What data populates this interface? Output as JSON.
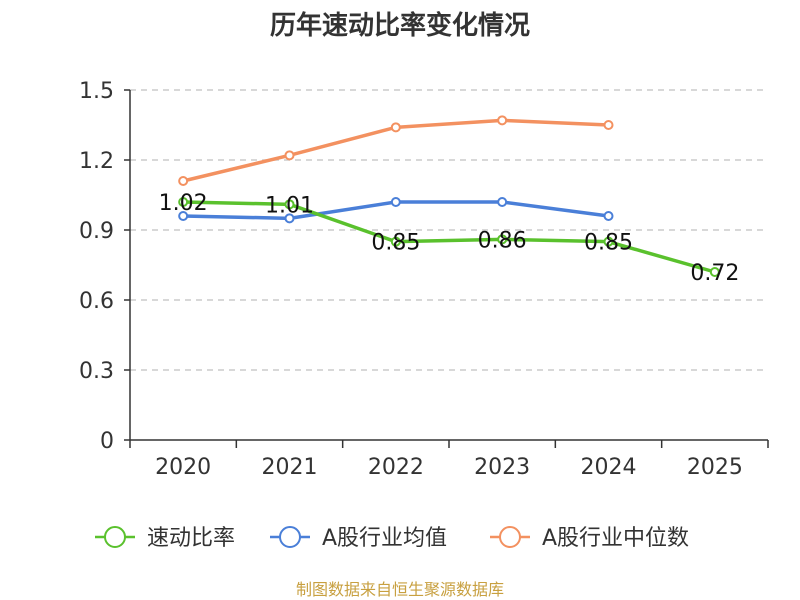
{
  "chart_data": {
    "type": "line",
    "title": "历年速动比率变化情况",
    "categories": [
      "2020",
      "2021",
      "2022",
      "2023",
      "2024",
      "2025"
    ],
    "ylim": [
      0,
      1.5
    ],
    "yticks": [
      "0",
      "0.3",
      "0.6",
      "0.9",
      "1.2",
      "1.5"
    ],
    "grid": true,
    "legend_position": "bottom",
    "series": [
      {
        "name": "速动比率",
        "color": "#5ac12d",
        "values": [
          1.02,
          1.01,
          0.85,
          0.86,
          0.85,
          0.72
        ],
        "labels": [
          "1.02",
          "1.01",
          "0.85",
          "0.86",
          "0.85",
          "0.72"
        ]
      },
      {
        "name": "A股行业均值",
        "color": "#4a7fd8",
        "values": [
          0.96,
          0.95,
          1.02,
          1.02,
          0.96,
          null
        ]
      },
      {
        "name": "A股行业中位数",
        "color": "#f39160",
        "values": [
          1.11,
          1.22,
          1.34,
          1.37,
          1.35,
          null
        ]
      }
    ],
    "source": "制图数据来自恒生聚源数据库"
  }
}
